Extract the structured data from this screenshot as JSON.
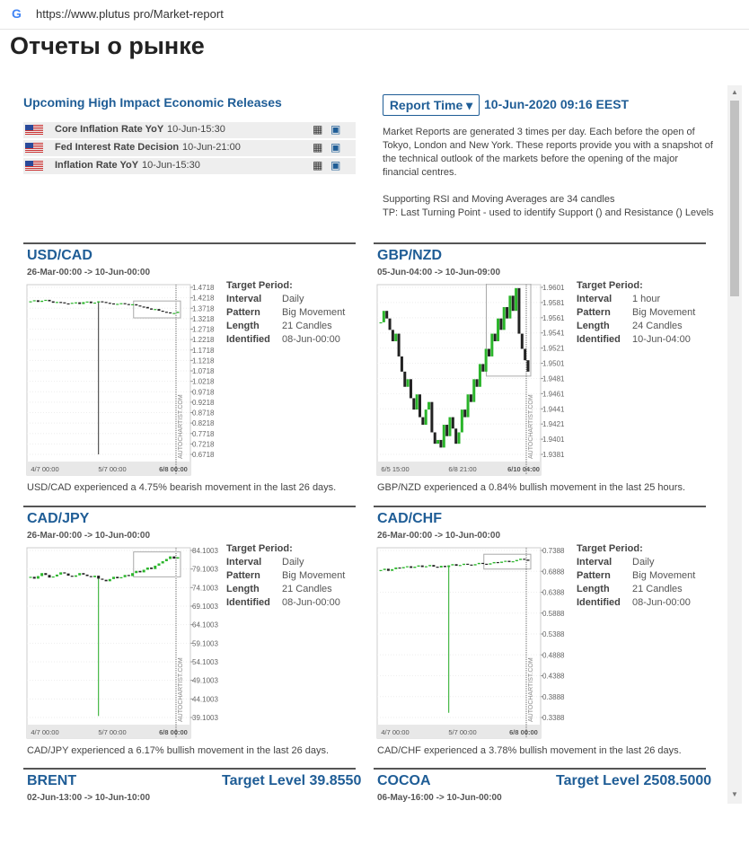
{
  "browser": {
    "url": "https://www.plutus pro/Market-report"
  },
  "page": {
    "title": "Отчеты о рынке"
  },
  "releases": {
    "title": "Upcoming High Impact Economic Releases",
    "items": [
      {
        "name": "Core Inflation Rate YoY",
        "time": "10-Jun-15:30"
      },
      {
        "name": "Fed Interest Rate Decision",
        "time": "10-Jun-21:00"
      },
      {
        "name": "Inflation Rate YoY",
        "time": "10-Jun-15:30"
      }
    ]
  },
  "report": {
    "button": "Report Time",
    "time": "10-Jun-2020 09:16 EEST",
    "paragraphs": [
      "Market Reports are generated 3 times per day. Each before the open of Tokyo, London and New York. These reports provide you with a snapshot of the technical outlook of the markets before the opening of the major financial centres.",
      "Supporting RSI and Moving Averages are 34 candles",
      "TP: Last Turning Point - used to identify Support () and Resistance () Levels"
    ]
  },
  "panels": [
    {
      "symbol": "USD/CAD",
      "period": "26-Mar-00:00 -> 10-Jun-00:00",
      "target_title": "Target Period:",
      "fields": [
        {
          "label": "Interval",
          "value": "Daily"
        },
        {
          "label": "Pattern",
          "value": "Big Movement"
        },
        {
          "label": "Length",
          "value": "21 Candles"
        },
        {
          "label": "Identified",
          "value": "08-Jun-00:00"
        }
      ],
      "summary": "USD/CAD experienced a 4.75% bearish movement in the last 26 days.",
      "chart": {
        "type": "candlestick",
        "watermark": "AUTOCHARTIST.COM",
        "yticks": [
          1.4718,
          1.4218,
          1.3718,
          1.3218,
          1.2718,
          1.2218,
          1.1718,
          1.1218,
          1.0718,
          1.0218,
          0.9718,
          0.9218,
          0.8718,
          0.8218,
          0.7718,
          0.7218,
          0.6718
        ],
        "ylim": [
          0.6718,
          1.4718
        ],
        "xticks": [
          "4/7 00:00",
          "5/7 00:00",
          "6/8 00:00"
        ],
        "closes": [
          1.405,
          1.41,
          1.402,
          1.408,
          1.412,
          1.405,
          1.398,
          1.402,
          1.4,
          1.395,
          1.393,
          1.398,
          1.4,
          1.392,
          1.401,
          1.404,
          1.396,
          1.399,
          1.405,
          1.402,
          1.398,
          1.395,
          1.39,
          1.393,
          1.396,
          1.392,
          1.388,
          1.391,
          1.385,
          1.38,
          1.378,
          1.371,
          1.365,
          1.368,
          1.36,
          1.355,
          1.352,
          1.347,
          1.349,
          1.355
        ],
        "spike": {
          "index": 18,
          "low": 0.6718
        }
      }
    },
    {
      "symbol": "GBP/NZD",
      "period": "05-Jun-04:00 -> 10-Jun-09:00",
      "target_title": "Target Period:",
      "fields": [
        {
          "label": "Interval",
          "value": "1 hour"
        },
        {
          "label": "Pattern",
          "value": "Big Movement"
        },
        {
          "label": "Length",
          "value": "24 Candles"
        },
        {
          "label": "Identified",
          "value": "10-Jun-04:00"
        }
      ],
      "summary": "GBP/NZD experienced a 0.84% bullish movement in the last 25 hours.",
      "chart": {
        "type": "candlestick",
        "watermark": "AUTOCHARTIST.COM",
        "yticks": [
          1.9601,
          1.9581,
          1.9561,
          1.9541,
          1.9521,
          1.9501,
          1.9481,
          1.9461,
          1.9441,
          1.9421,
          1.9401,
          1.9381
        ],
        "ylim": [
          1.9381,
          1.9601
        ],
        "xticks": [
          "6/5 15:00",
          "6/8 21:00",
          "6/10 04:00"
        ],
        "closes": [
          1.9555,
          1.957,
          1.956,
          1.9545,
          1.953,
          1.954,
          1.951,
          1.949,
          1.947,
          1.948,
          1.9455,
          1.944,
          1.946,
          1.943,
          1.942,
          1.944,
          1.945,
          1.941,
          1.9395,
          1.94,
          1.939,
          1.942,
          1.9405,
          1.943,
          1.9415,
          1.9395,
          1.941,
          1.944,
          1.943,
          1.946,
          1.945,
          1.948,
          1.947,
          1.95,
          1.949,
          1.952,
          1.951,
          1.954,
          1.953,
          1.956,
          1.9545,
          1.9575,
          1.956,
          1.959,
          1.957,
          1.96,
          1.954,
          1.952,
          1.9505,
          1.949
        ]
      }
    },
    {
      "symbol": "CAD/JPY",
      "period": "26-Mar-00:00 -> 10-Jun-00:00",
      "target_title": "Target Period:",
      "fields": [
        {
          "label": "Interval",
          "value": "Daily"
        },
        {
          "label": "Pattern",
          "value": "Big Movement"
        },
        {
          "label": "Length",
          "value": "21 Candles"
        },
        {
          "label": "Identified",
          "value": "08-Jun-00:00"
        }
      ],
      "summary": "CAD/JPY experienced a 6.17% bullish movement in the last 26 days.",
      "chart": {
        "type": "candlestick",
        "watermark": "AUTOCHARTIST.COM",
        "yticks": [
          84.1003,
          79.1003,
          74.1003,
          69.1003,
          64.1003,
          59.1003,
          54.1003,
          49.1003,
          44.1003,
          39.1003
        ],
        "ylim": [
          39.1003,
          84.1003
        ],
        "xticks": [
          "4/7 00:00",
          "5/7 00:00",
          "6/8 00:00"
        ],
        "closes": [
          77,
          76.5,
          77.2,
          78,
          77.5,
          76.8,
          77.1,
          77.6,
          78.2,
          77.9,
          77.3,
          77,
          77.4,
          78,
          77.6,
          77.2,
          76.9,
          77.3,
          76.5,
          76.2,
          75.8,
          76.4,
          77,
          76.6,
          76.9,
          77.5,
          77.2,
          78,
          78.6,
          78.2,
          78.9,
          79.5,
          79.1,
          80,
          80.6,
          81.2,
          81.8,
          82.5,
          81.9,
          82.3
        ],
        "spike": {
          "index": 18,
          "low": 39.5
        }
      }
    },
    {
      "symbol": "CAD/CHF",
      "period": "26-Mar-00:00 -> 10-Jun-00:00",
      "target_title": "Target Period:",
      "fields": [
        {
          "label": "Interval",
          "value": "Daily"
        },
        {
          "label": "Pattern",
          "value": "Big Movement"
        },
        {
          "label": "Length",
          "value": "21 Candles"
        },
        {
          "label": "Identified",
          "value": "08-Jun-00:00"
        }
      ],
      "summary": "CAD/CHF experienced a 3.78% bullish movement in the last 26 days.",
      "chart": {
        "type": "candlestick",
        "watermark": "AUTOCHARTIST.COM",
        "yticks": [
          0.7388,
          0.6888,
          0.6388,
          0.5888,
          0.5388,
          0.4888,
          0.4388,
          0.3888,
          0.3388
        ],
        "ylim": [
          0.3388,
          0.7388
        ],
        "xticks": [
          "4/7 00:00",
          "5/7 00:00",
          "6/8 00:00"
        ],
        "closes": [
          0.692,
          0.695,
          0.69,
          0.694,
          0.698,
          0.696,
          0.699,
          0.701,
          0.697,
          0.7,
          0.703,
          0.699,
          0.701,
          0.704,
          0.7,
          0.698,
          0.702,
          0.699,
          0.703,
          0.706,
          0.702,
          0.704,
          0.707,
          0.705,
          0.703,
          0.706,
          0.709,
          0.707,
          0.705,
          0.708,
          0.711,
          0.709,
          0.712,
          0.714,
          0.711,
          0.713,
          0.716,
          0.719,
          0.717,
          0.714
        ],
        "spike": {
          "index": 18,
          "low": 0.35
        }
      }
    }
  ],
  "partial_panels": [
    {
      "symbol": "BRENT",
      "target": "Target Level 39.8550",
      "period": "02-Jun-13:00 -> 10-Jun-10:00"
    },
    {
      "symbol": "COCOA",
      "target": "Target Level 2508.5000",
      "period": "06-May-16:00 -> 10-Jun-00:00"
    }
  ]
}
